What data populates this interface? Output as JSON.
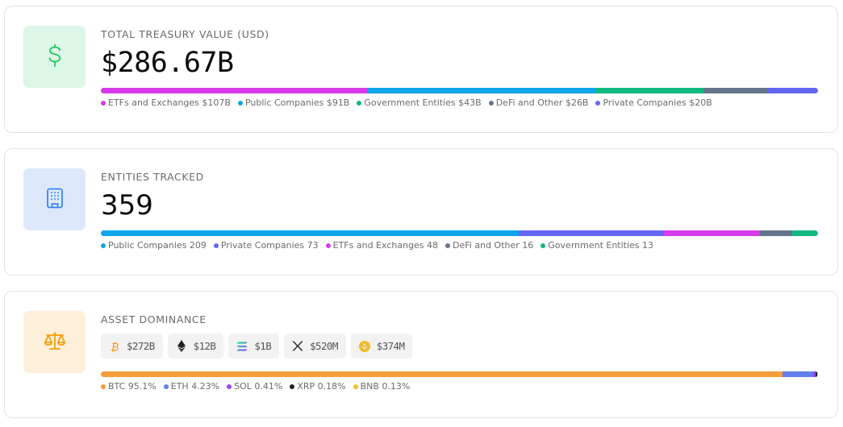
{
  "treasury": {
    "label": "TOTAL TREASURY VALUE (USD)",
    "value": "$286.67B",
    "icon": "dollar-icon",
    "segments": [
      {
        "name": "ETFs and Exchanges",
        "display": "ETFs and Exchanges $107B",
        "value": 107,
        "color": "#d63aeb"
      },
      {
        "name": "Public Companies",
        "display": "Public Companies $91B",
        "value": 91,
        "color": "#0ea5e9"
      },
      {
        "name": "Government Entities",
        "display": "Government Entities $43B",
        "value": 43,
        "color": "#10b981"
      },
      {
        "name": "DeFi and Other",
        "display": "DeFi and Other $26B",
        "value": 26,
        "color": "#64748b"
      },
      {
        "name": "Private Companies",
        "display": "Private Companies $20B",
        "value": 20,
        "color": "#6366f1"
      }
    ]
  },
  "entities": {
    "label": "ENTITIES TRACKED",
    "value": "359",
    "icon": "building-icon",
    "segments": [
      {
        "name": "Public Companies",
        "display": "Public Companies 209",
        "value": 209,
        "color": "#0ea5e9"
      },
      {
        "name": "Private Companies",
        "display": "Private Companies 73",
        "value": 73,
        "color": "#6366f1"
      },
      {
        "name": "ETFs and Exchanges",
        "display": "ETFs and Exchanges 48",
        "value": 48,
        "color": "#d63aeb"
      },
      {
        "name": "DeFi and Other",
        "display": "DeFi and Other 16",
        "value": 16,
        "color": "#64748b"
      },
      {
        "name": "Government Entities",
        "display": "Government Entities 13",
        "value": 13,
        "color": "#10b981"
      }
    ]
  },
  "dominance": {
    "label": "ASSET DOMINANCE",
    "icon": "scale-icon",
    "chips": [
      {
        "asset": "BTC",
        "icon": "bitcoin-icon",
        "value": "$272B"
      },
      {
        "asset": "ETH",
        "icon": "ethereum-icon",
        "value": "$12B"
      },
      {
        "asset": "SOL",
        "icon": "solana-icon",
        "value": "$1B"
      },
      {
        "asset": "XRP",
        "icon": "xrp-icon",
        "value": "$520M"
      },
      {
        "asset": "BNB",
        "icon": "bnb-icon",
        "value": "$374M"
      }
    ],
    "segments": [
      {
        "name": "BTC",
        "display": "BTC 95.1%",
        "value": 95.1,
        "color": "#f59e3a"
      },
      {
        "name": "ETH",
        "display": "ETH 4.23%",
        "value": 4.23,
        "color": "#627eea"
      },
      {
        "name": "SOL",
        "display": "SOL 0.41%",
        "value": 0.41,
        "color": "#9945ff"
      },
      {
        "name": "XRP",
        "display": "XRP 0.18%",
        "value": 0.18,
        "color": "#222222"
      },
      {
        "name": "BNB",
        "display": "BNB 0.13%",
        "value": 0.13,
        "color": "#f3ba2f"
      }
    ]
  }
}
